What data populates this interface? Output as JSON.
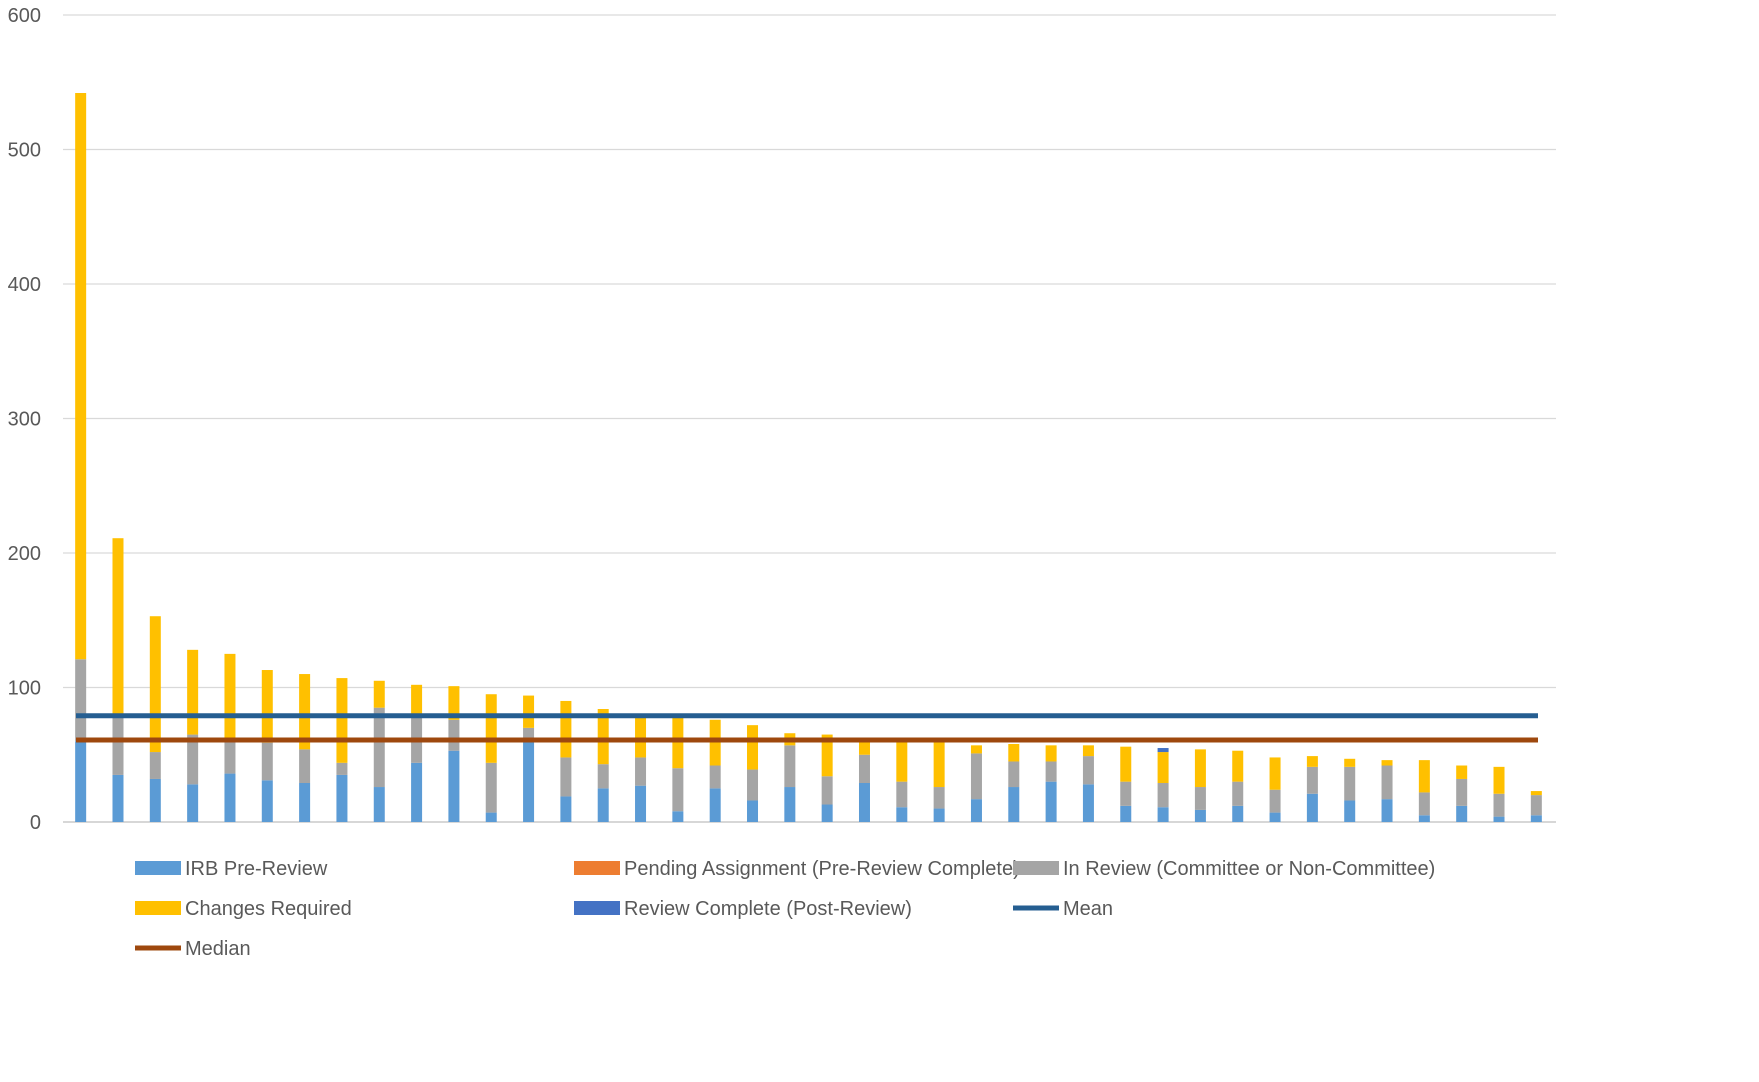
{
  "chart_data": {
    "type": "bar",
    "stacked": true,
    "title": "",
    "xlabel": "",
    "ylabel": "",
    "ylim": [
      0,
      600
    ],
    "yticks": [
      0,
      100,
      200,
      300,
      400,
      500,
      600
    ],
    "grid": true,
    "legend_position": "bottom",
    "category_count": 40,
    "series": [
      {
        "name": "IRB Pre-Review",
        "color": "#5B9BD5",
        "values": [
          60,
          35,
          32,
          28,
          36,
          31,
          29,
          35,
          26,
          44,
          53,
          7,
          60,
          19,
          25,
          27,
          8,
          25,
          16,
          26,
          13,
          29,
          11,
          10,
          17,
          26,
          30,
          28,
          12,
          11,
          9,
          12,
          7,
          21,
          16,
          17,
          5,
          12,
          4,
          5
        ]
      },
      {
        "name": "Pending Assignment (Pre-Review Complete)",
        "color": "#ED7D31",
        "values": [
          0,
          0,
          0,
          0,
          0,
          0,
          0,
          0,
          0,
          0,
          0,
          0,
          0,
          0,
          0,
          0,
          0,
          0,
          0,
          0,
          0,
          0,
          0,
          0,
          0,
          0,
          0,
          0,
          0,
          0,
          0,
          0,
          0,
          0,
          0,
          0,
          0,
          0,
          0,
          0
        ]
      },
      {
        "name": "In Review (Committee or Non-Committee)",
        "color": "#A5A5A5",
        "values": [
          61,
          45,
          20,
          37,
          24,
          28,
          25,
          9,
          59,
          36,
          23,
          37,
          10,
          29,
          18,
          21,
          32,
          17,
          23,
          31,
          21,
          21,
          19,
          16,
          34,
          19,
          15,
          21,
          18,
          18,
          17,
          18,
          17,
          20,
          25,
          25,
          17,
          20,
          17,
          15
        ]
      },
      {
        "name": "Changes Required",
        "color": "#FFC000",
        "values": [
          421,
          131,
          101,
          63,
          65,
          54,
          56,
          63,
          20,
          22,
          25,
          51,
          24,
          42,
          41,
          31,
          38,
          34,
          33,
          9,
          31,
          11,
          31,
          35,
          6,
          13,
          12,
          8,
          26,
          23,
          28,
          23,
          24,
          8,
          6,
          4,
          24,
          10,
          20,
          3
        ]
      },
      {
        "name": "Review Complete (Post-Review)",
        "color": "#4472C4",
        "values": [
          0,
          0,
          0,
          0,
          0,
          0,
          0,
          0,
          0,
          0,
          0,
          0,
          0,
          0,
          0,
          0,
          0,
          0,
          0,
          0,
          0,
          0,
          0,
          0,
          0,
          0,
          0,
          0,
          0,
          3,
          0,
          0,
          0,
          0,
          0,
          0,
          0,
          0,
          0,
          0
        ]
      }
    ],
    "reference_lines": [
      {
        "name": "Mean",
        "value": 79,
        "color": "#255E91"
      },
      {
        "name": "Median",
        "value": 61,
        "color": "#9E480E"
      }
    ]
  }
}
